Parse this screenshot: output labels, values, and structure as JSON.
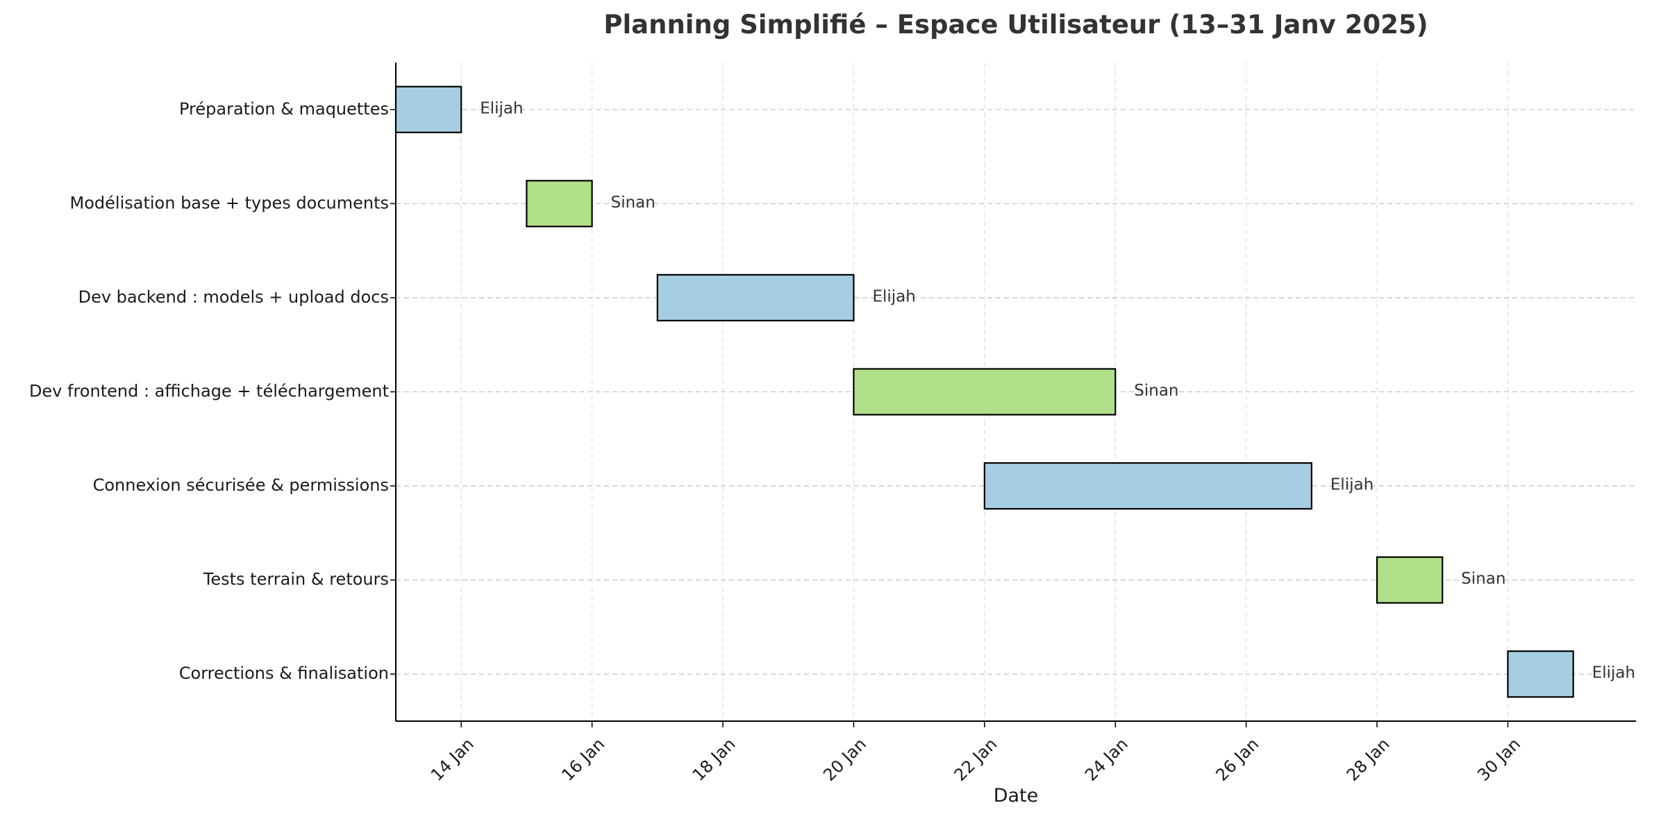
{
  "chart_data": {
    "type": "gantt",
    "title": "Planning Simplifié – Espace Utilisateur (13–31 Janv 2025)",
    "xlabel": "Date",
    "ylabel": "",
    "xlim": [
      "2025-01-13",
      "2025-01-31T23:00"
    ],
    "x_ticks": [
      {
        "date": "2025-01-14",
        "label": "14 Jan"
      },
      {
        "date": "2025-01-16",
        "label": "16 Jan"
      },
      {
        "date": "2025-01-18",
        "label": "18 Jan"
      },
      {
        "date": "2025-01-20",
        "label": "20 Jan"
      },
      {
        "date": "2025-01-22",
        "label": "22 Jan"
      },
      {
        "date": "2025-01-24",
        "label": "24 Jan"
      },
      {
        "date": "2025-01-26",
        "label": "26 Jan"
      },
      {
        "date": "2025-01-28",
        "label": "28 Jan"
      },
      {
        "date": "2025-01-30",
        "label": "30 Jan"
      }
    ],
    "grid": true,
    "tasks": [
      {
        "name": "Préparation & maquettes",
        "start": "2025-01-13",
        "end": "2025-01-14",
        "owner": "Elijah"
      },
      {
        "name": "Modélisation base + types documents",
        "start": "2025-01-15",
        "end": "2025-01-16",
        "owner": "Sinan"
      },
      {
        "name": "Dev backend : models + upload docs",
        "start": "2025-01-17",
        "end": "2025-01-20",
        "owner": "Elijah"
      },
      {
        "name": "Dev frontend : affichage + téléchargement",
        "start": "2025-01-20",
        "end": "2025-01-24",
        "owner": "Sinan"
      },
      {
        "name": "Connexion sécurisée & permissions",
        "start": "2025-01-22",
        "end": "2025-01-27",
        "owner": "Elijah"
      },
      {
        "name": "Tests terrain & retours",
        "start": "2025-01-28",
        "end": "2025-01-29",
        "owner": "Sinan"
      },
      {
        "name": "Corrections & finalisation",
        "start": "2025-01-30",
        "end": "2025-01-31",
        "owner": "Elijah"
      }
    ],
    "owner_colors": {
      "Elijah": "#a6cee3",
      "Sinan": "#b2df8a"
    }
  }
}
